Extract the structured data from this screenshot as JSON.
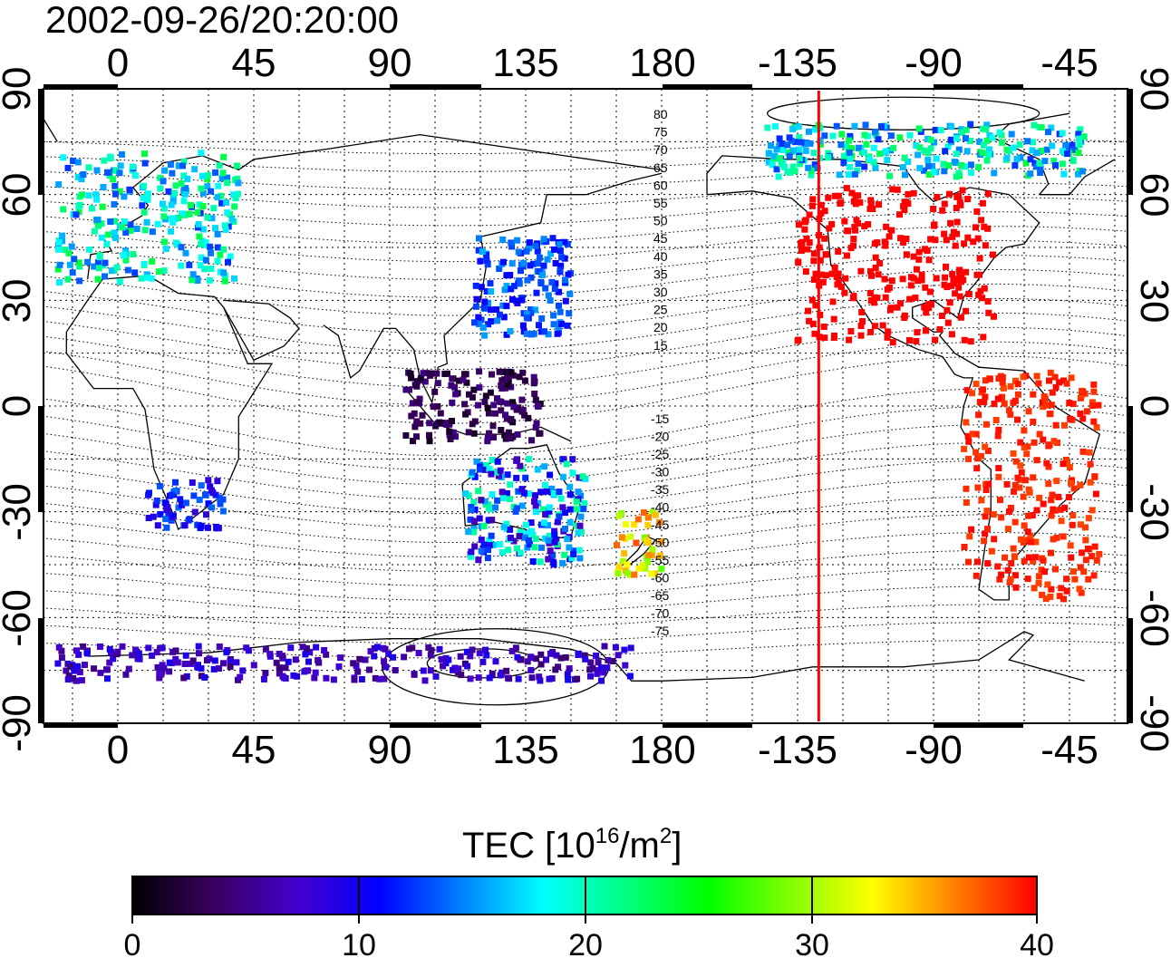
{
  "map": {
    "timestamp": "2002-09-26/20:20:00",
    "lon_ticks": [
      "0",
      "45",
      "90",
      "135",
      "180",
      "-135",
      "-90",
      "-45"
    ],
    "lat_ticks": [
      "90",
      "60",
      "30",
      "0",
      "-30",
      "-60",
      "-90"
    ],
    "terminator_lon": -128,
    "terminator_color": "#ff0000",
    "contour_labels_north": [
      "80",
      "75",
      "70",
      "65",
      "60",
      "55",
      "50",
      "45",
      "40",
      "35",
      "30",
      "25",
      "20",
      "15"
    ],
    "contour_labels_south": [
      "-15",
      "-20",
      "-25",
      "-30",
      "-35",
      "-40",
      "-45",
      "-50",
      "-55",
      "-60",
      "-65",
      "-70",
      "-75"
    ]
  },
  "colorbar": {
    "title_main": "TEC  [10",
    "title_sup1": "16",
    "title_mid": "/m",
    "title_sup2": "2",
    "title_end": "]",
    "tick_labels": [
      "0",
      "10",
      "20",
      "30",
      "40"
    ],
    "min": 0,
    "max": 40,
    "colors": [
      "#000000",
      "#3a0060",
      "#4400cc",
      "#0000ff",
      "#0080ff",
      "#00ffff",
      "#00ff80",
      "#00ff00",
      "#80ff00",
      "#ffff00",
      "#ff8000",
      "#ff0000"
    ]
  },
  "tec_regions": [
    {
      "name": "europe",
      "lon": [
        -20,
        40
      ],
      "lat": [
        35,
        72
      ],
      "tec": [
        12,
        24
      ]
    },
    {
      "name": "north-america",
      "lon": [
        -135,
        -70
      ],
      "lat": [
        18,
        62
      ],
      "tec": [
        40,
        40
      ]
    },
    {
      "name": "east-asia",
      "lon": [
        118,
        150
      ],
      "lat": [
        20,
        48
      ],
      "tec": [
        10,
        16
      ]
    },
    {
      "name": "indonesia",
      "lon": [
        95,
        140
      ],
      "lat": [
        -10,
        10
      ],
      "tec": [
        1,
        5
      ]
    },
    {
      "name": "south-america",
      "lon": [
        -80,
        -35
      ],
      "lat": [
        -55,
        10
      ],
      "tec": [
        38,
        40
      ]
    },
    {
      "name": "australia",
      "lon": [
        115,
        155
      ],
      "lat": [
        -45,
        -15
      ],
      "tec": [
        6,
        22
      ]
    },
    {
      "name": "new-zealand",
      "lon": [
        165,
        180
      ],
      "lat": [
        -48,
        -30
      ],
      "tec": [
        28,
        38
      ]
    },
    {
      "name": "southern-africa",
      "lon": [
        10,
        35
      ],
      "lat": [
        -35,
        -20
      ],
      "tec": [
        8,
        14
      ]
    },
    {
      "name": "antarctic-coast",
      "lon": [
        -20,
        170
      ],
      "lat": [
        -78,
        -68
      ],
      "tec": [
        4,
        10
      ]
    },
    {
      "name": "canada-arctic",
      "lon": [
        -145,
        -40
      ],
      "lat": [
        65,
        80
      ],
      "tec": [
        12,
        24
      ]
    }
  ]
}
